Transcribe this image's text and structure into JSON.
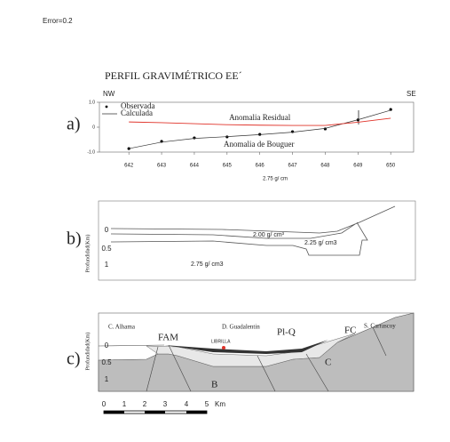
{
  "header": {
    "error": "Error=0.2",
    "title": "PERFIL GRAVIMÉTRICO EE´"
  },
  "chart_data": {
    "type": "line",
    "label": "a)",
    "x": [
      642,
      643,
      644,
      645,
      646,
      647,
      648,
      649,
      650
    ],
    "xlim": [
      641.1,
      650.7
    ],
    "xticks": [
      642,
      643,
      644,
      645,
      646,
      647,
      648,
      649,
      650
    ],
    "ylim": [
      -1,
      1
    ],
    "yticks": [
      {
        "value": -1,
        "label": "-1.0"
      },
      0,
      {
        "value": 1,
        "label": "1.0"
      }
    ],
    "legend": "upper left",
    "series": [
      {
        "name": "Observada",
        "color": "#000000",
        "style": "points",
        "values": [
          -0.86,
          -0.57,
          -0.43,
          -0.39,
          -0.29,
          -0.18,
          -0.07,
          0.29,
          0.71
        ]
      },
      {
        "name": "Calculada",
        "color": "#333333",
        "style": "line",
        "values": [
          -0.86,
          -0.6,
          -0.45,
          -0.38,
          -0.3,
          -0.2,
          -0.05,
          0.3,
          0.68
        ]
      },
      {
        "name": "Anomalia Residual",
        "color": "#e0332a",
        "style": "labeled-line",
        "values": [
          0.21,
          0.18,
          0.14,
          0.1,
          0.08,
          0.07,
          0.07,
          0.2,
          0.36
        ]
      }
    ],
    "annotations": [
      "NW",
      "SE",
      "Anomalia de Bouguer",
      "2.75 g/ cm"
    ]
  },
  "panel_b": {
    "label": "b)",
    "axis_title": "Profundidad(Km)",
    "depths": [
      "0",
      "0.5",
      "1"
    ],
    "densities": [
      "2.00 g/ cm³",
      "2.25 g/ cm3",
      "2.75 g/ cm3"
    ]
  },
  "panel_c": {
    "label": "c)",
    "axis_title": "Profundidad(Km)",
    "depths": [
      "0",
      "0.5",
      "1"
    ],
    "places": [
      "C. Alhama",
      "D. Guadalentin",
      "S. Carrascoy",
      "LIBRILLA"
    ],
    "units": [
      "FAM",
      "Pl-Q",
      "FC",
      "C",
      "B"
    ],
    "scale": [
      "0",
      "1",
      "2",
      "3",
      "4",
      "5",
      "Km"
    ]
  }
}
